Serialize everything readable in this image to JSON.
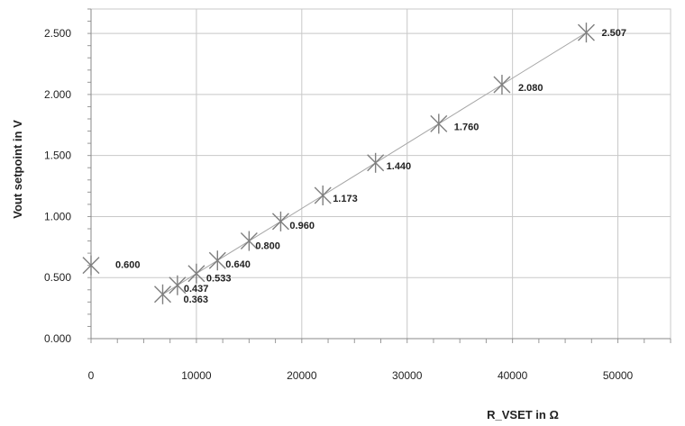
{
  "chart_data": {
    "type": "scatter",
    "xlabel": "R_VSET in Ω",
    "ylabel": "Vout setpoint in V",
    "xlim": [
      0,
      55000
    ],
    "ylim": [
      0,
      2.7
    ],
    "x_ticks": [
      0,
      10000,
      20000,
      30000,
      40000,
      50000
    ],
    "y_ticks": [
      0,
      0.5,
      1.0,
      1.5,
      2.0,
      2.5
    ],
    "x_tick_labels": [
      "0",
      "10000",
      "20000",
      "30000",
      "40000",
      "50000"
    ],
    "y_tick_labels": [
      "0.000",
      "0.500",
      "1.000",
      "1.500",
      "2.000",
      "2.500"
    ],
    "grid": true,
    "marker": "asterisk",
    "colors": {
      "marker": "#7f7f7f",
      "line": "#a6a6a6",
      "grid": "#c8c8c8"
    },
    "series": [
      {
        "points": [
          {
            "x": 0,
            "y": 0.6,
            "label": "0.600"
          },
          {
            "x": 6800,
            "y": 0.363,
            "label": "0.363"
          },
          {
            "x": 8200,
            "y": 0.437,
            "label": "0.437"
          },
          {
            "x": 10000,
            "y": 0.533,
            "label": "0.533"
          },
          {
            "x": 12000,
            "y": 0.64,
            "label": "0.640"
          },
          {
            "x": 15000,
            "y": 0.8,
            "label": "0.800"
          },
          {
            "x": 18000,
            "y": 0.96,
            "label": "0.960"
          },
          {
            "x": 22000,
            "y": 1.173,
            "label": "1.173"
          },
          {
            "x": 27000,
            "y": 1.44,
            "label": "1.440"
          },
          {
            "x": 33000,
            "y": 1.76,
            "label": "1.760"
          },
          {
            "x": 39000,
            "y": 2.08,
            "label": "2.080"
          },
          {
            "x": 47000,
            "y": 2.507,
            "label": "2.507"
          }
        ]
      }
    ],
    "trendline": {
      "from_x": 6800,
      "to_x": 47000
    }
  }
}
